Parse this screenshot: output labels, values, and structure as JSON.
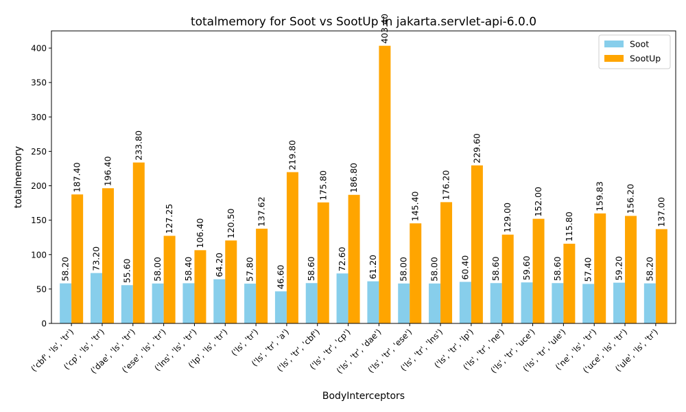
{
  "chart_data": {
    "type": "bar",
    "title": "totalmemory for Soot vs SootUp in jakarta.servlet-api-6.0.0",
    "xlabel": "BodyInterceptors",
    "ylabel": "totalmemory",
    "ylim": [
      0,
      425
    ],
    "yticks": [
      0,
      50,
      100,
      150,
      200,
      250,
      300,
      350,
      400
    ],
    "grid": false,
    "legend_position": "top-right",
    "categories": [
      "('cbf', 'ls', 'tr')",
      "('cp', 'ls', 'tr')",
      "('dae', 'ls', 'tr')",
      "('ese', 'ls', 'tr')",
      "('lns', 'ls', 'tr')",
      "('lp', 'ls', 'tr')",
      "('ls', 'tr')",
      "('ls', 'tr', 'a')",
      "('ls', 'tr', 'cbf')",
      "('ls', 'tr', 'cp')",
      "('ls', 'tr', 'dae')",
      "('ls', 'tr', 'ese')",
      "('ls', 'tr', 'lns')",
      "('ls', 'tr', 'lp')",
      "('ls', 'tr', 'ne')",
      "('ls', 'tr', 'uce')",
      "('ls', 'tr', 'ule')",
      "('ne', 'ls', 'tr')",
      "('uce', 'ls', 'tr')",
      "('ule', 'ls', 'tr')"
    ],
    "series": [
      {
        "name": "Soot",
        "color": "#87CEEB",
        "values": [
          58.2,
          73.2,
          55.6,
          58.0,
          58.4,
          64.2,
          57.8,
          46.6,
          58.6,
          72.6,
          61.2,
          58.0,
          58.0,
          60.4,
          58.6,
          59.6,
          58.6,
          57.4,
          59.2,
          58.2
        ],
        "labels": [
          "58.20",
          "73.20",
          "55.60",
          "58.00",
          "58.40",
          "64.20",
          "57.80",
          "46.60",
          "58.60",
          "72.60",
          "61.20",
          "58.00",
          "58.00",
          "60.40",
          "58.60",
          "59.60",
          "58.60",
          "57.40",
          "59.20",
          "58.20"
        ]
      },
      {
        "name": "SootUp",
        "color": "#FFA500",
        "values": [
          187.4,
          196.4,
          233.8,
          127.25,
          106.4,
          120.5,
          137.62,
          219.8,
          175.8,
          186.8,
          403.4,
          145.4,
          176.2,
          229.6,
          129.0,
          152.0,
          115.8,
          159.83,
          156.2,
          137.0
        ],
        "labels": [
          "187.40",
          "196.40",
          "233.80",
          "127.25",
          "106.40",
          "120.50",
          "137.62",
          "219.80",
          "175.80",
          "186.80",
          "403.40",
          "145.40",
          "176.20",
          "229.60",
          "129.00",
          "152.00",
          "115.80",
          "159.83",
          "156.20",
          "137.00"
        ]
      }
    ]
  }
}
